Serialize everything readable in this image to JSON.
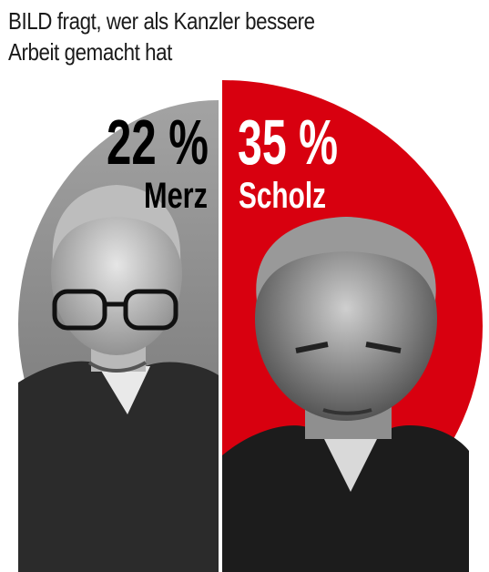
{
  "title": {
    "line1": "BILD fragt, wer als Kanzler bessere",
    "line2": "Arbeit gemacht hat"
  },
  "colors": {
    "merz_slice": "#8f8f8f",
    "scholz_slice": "#d8000f",
    "merz_text": "#000000",
    "scholz_text": "#ffffff"
  },
  "chart_data": {
    "type": "pie",
    "title": "BILD fragt, wer als Kanzler bessere Arbeit gemacht hat",
    "slices": [
      {
        "label": "Merz",
        "value": 22,
        "display": "22 %"
      },
      {
        "label": "Scholz",
        "value": 35,
        "display": "35 %"
      }
    ],
    "units": "%",
    "legend": "none"
  }
}
